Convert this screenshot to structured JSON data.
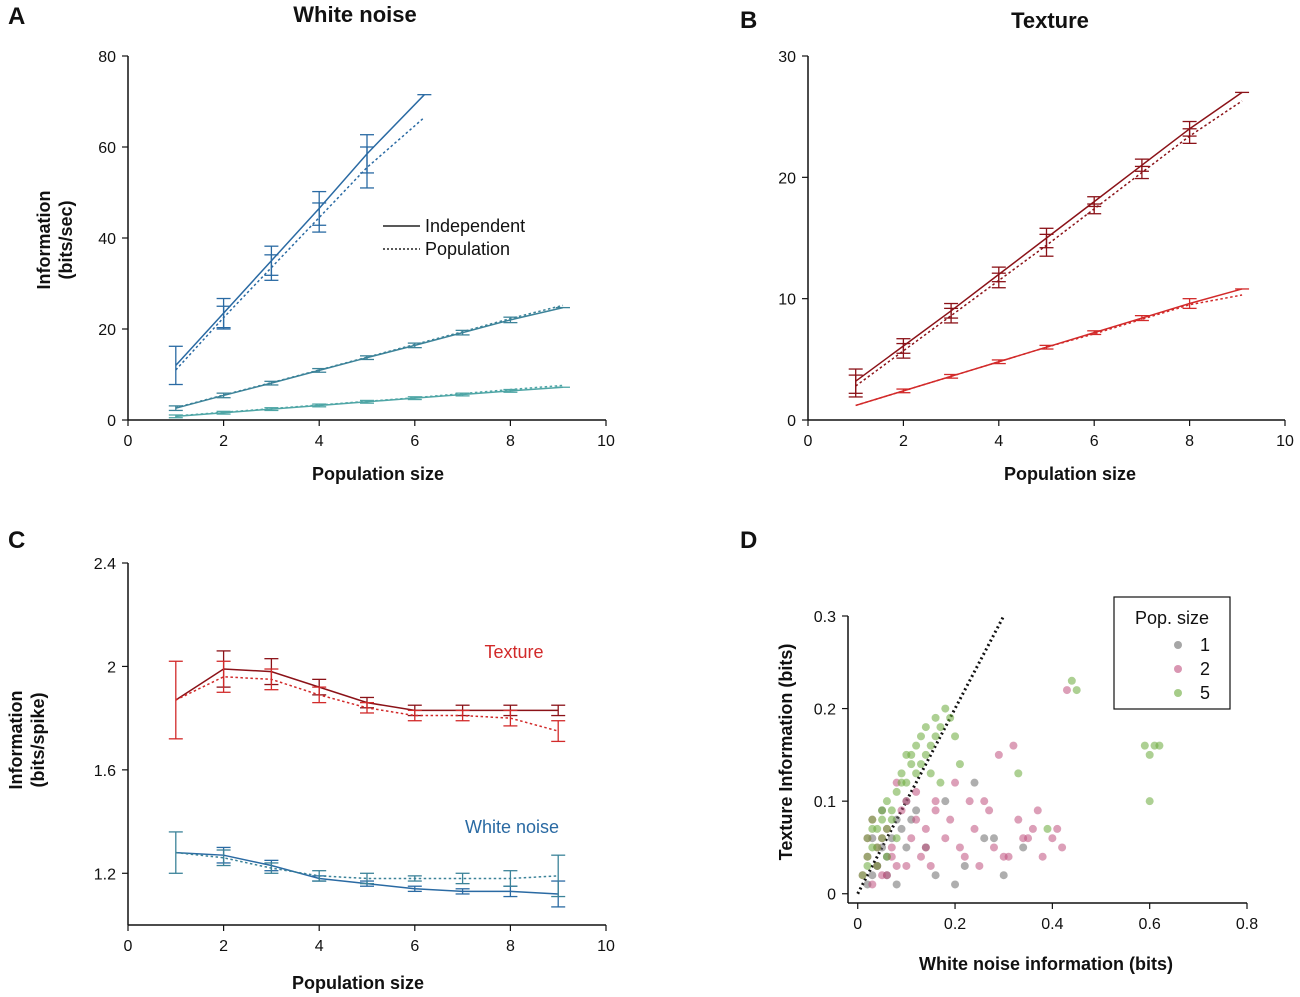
{
  "colors": {
    "blue_dark": "#2a6aa3",
    "blue_mid": "#3c8399",
    "teal": "#4fa6a6",
    "red_dark": "#8b1218",
    "red": "#d22a2a",
    "gray": "#6b6b6b",
    "magenta": "#c0507e",
    "green": "#6aaa3a"
  },
  "chart_data": [
    {
      "panel": "A",
      "type": "line",
      "title": "White noise",
      "xlabel": "Population size",
      "ylabel": [
        "Information",
        "(bits/sec)"
      ],
      "xlim": [
        0,
        10
      ],
      "ylim": [
        0,
        80
      ],
      "xticks": [
        0,
        2,
        4,
        6,
        8,
        10
      ],
      "yticks": [
        0,
        20,
        40,
        60,
        80
      ],
      "legend": {
        "position": "center",
        "entries": [
          {
            "label": "Independent",
            "style": "solid"
          },
          {
            "label": "Population",
            "style": "dotted"
          }
        ]
      },
      "series": [
        {
          "name": "Group 1 Independent",
          "style": "solid",
          "color": "blue_dark",
          "x": [
            1,
            2,
            3,
            4,
            5,
            6.2
          ],
          "y": [
            12,
            23.5,
            35,
            46.5,
            58.5,
            71.5
          ],
          "err": [
            4.2,
            3.2,
            3.2,
            3.7,
            4.2,
            0
          ]
        },
        {
          "name": "Group 1 Population",
          "style": "dotted",
          "color": "blue_dark",
          "x": [
            1,
            2,
            3,
            4,
            5,
            6.2
          ],
          "y": [
            11,
            22.5,
            33.5,
            44.5,
            55.5,
            66.5
          ],
          "err": [
            0,
            2.5,
            2.8,
            3.2,
            4.5,
            0
          ]
        },
        {
          "name": "Group 2 Independent",
          "style": "solid",
          "color": "blue_mid",
          "x": [
            1,
            2,
            3,
            4,
            5,
            6,
            7,
            8,
            9.1
          ],
          "y": [
            2.6,
            5.4,
            8.1,
            10.9,
            13.7,
            16.4,
            19.2,
            22,
            24.7
          ],
          "err": [
            0.5,
            0.5,
            0.4,
            0.4,
            0.4,
            0.5,
            0.5,
            0.6,
            0
          ]
        },
        {
          "name": "Group 2 Population",
          "style": "dotted",
          "color": "blue_mid",
          "x": [
            1,
            2,
            3,
            4,
            5,
            6,
            7,
            8,
            9.1
          ],
          "y": [
            2.7,
            5.5,
            8.2,
            11,
            13.8,
            16.6,
            19.4,
            22.3,
            25.2
          ],
          "err": [
            0,
            0,
            0,
            0,
            0,
            0,
            0,
            0,
            0
          ]
        },
        {
          "name": "Group 3 Independent",
          "style": "solid",
          "color": "teal",
          "x": [
            1,
            2,
            3,
            4,
            5,
            6,
            7,
            8,
            9.1
          ],
          "y": [
            0.8,
            1.6,
            2.4,
            3.2,
            4,
            4.8,
            5.6,
            6.4,
            7.2
          ],
          "err": [
            0.3,
            0.3,
            0.3,
            0.3,
            0.3,
            0.3,
            0.3,
            0.3,
            0
          ]
        },
        {
          "name": "Group 3 Population",
          "style": "dotted",
          "color": "teal",
          "x": [
            1,
            2,
            3,
            4,
            5,
            6,
            7,
            8,
            9.1
          ],
          "y": [
            0.9,
            1.7,
            2.5,
            3.3,
            4.1,
            4.9,
            5.8,
            6.7,
            7.6
          ],
          "err": [
            0,
            0,
            0,
            0,
            0,
            0,
            0,
            0,
            0
          ]
        }
      ]
    },
    {
      "panel": "B",
      "type": "line",
      "title": "Texture",
      "xlabel": "Population size",
      "ylabel": [],
      "xlim": [
        0,
        10
      ],
      "ylim": [
        0,
        30
      ],
      "xticks": [
        0,
        2,
        4,
        6,
        8,
        10
      ],
      "yticks": [
        0,
        10,
        20,
        30
      ],
      "series": [
        {
          "name": "Group 1 Independent",
          "style": "solid",
          "color": "red_dark",
          "x": [
            1,
            2,
            3,
            4,
            5,
            6,
            7,
            8,
            9.1
          ],
          "y": [
            3.2,
            6.1,
            9,
            12,
            15,
            18,
            21,
            24,
            27
          ],
          "err": [
            1,
            0.6,
            0.6,
            0.6,
            0.8,
            0.4,
            0.5,
            0.6,
            0
          ]
        },
        {
          "name": "Group 1 Population",
          "style": "dotted",
          "color": "red_dark",
          "x": [
            1,
            2,
            3,
            4,
            5,
            6,
            7,
            8,
            9.1
          ],
          "y": [
            2.8,
            5.7,
            8.6,
            11.5,
            14.4,
            17.4,
            20.4,
            23.4,
            26.3
          ],
          "err": [
            0.9,
            0.6,
            0.6,
            0.6,
            0.9,
            0.4,
            0.5,
            0.6,
            0
          ]
        },
        {
          "name": "Group 2 Independent",
          "style": "solid",
          "color": "red",
          "x": [
            1,
            2,
            3,
            4,
            5,
            6,
            7,
            8,
            9.1
          ],
          "y": [
            1.2,
            2.4,
            3.6,
            4.8,
            6,
            7.2,
            8.4,
            9.6,
            10.8
          ],
          "err": [
            0,
            0.15,
            0.15,
            0.15,
            0.15,
            0.15,
            0.2,
            0.4,
            0
          ]
        },
        {
          "name": "Group 2 Population",
          "style": "dotted",
          "color": "red",
          "x": [
            1,
            2,
            3,
            4,
            5,
            6,
            7,
            8,
            9.1
          ],
          "y": [
            1.2,
            2.4,
            3.6,
            4.8,
            6,
            7.1,
            8.3,
            9.5,
            10.3
          ],
          "err": [
            0,
            0,
            0,
            0,
            0,
            0,
            0,
            0,
            0
          ]
        }
      ]
    },
    {
      "panel": "C",
      "type": "line",
      "title": "",
      "xlabel": "Population size",
      "ylabel": [
        "Information",
        "(bits/spike)"
      ],
      "xlim": [
        0,
        10
      ],
      "ylim": [
        1.0,
        2.4
      ],
      "xticks": [
        0,
        2,
        4,
        6,
        8,
        10
      ],
      "yticks": [
        1.2,
        1.6,
        2,
        2.4
      ],
      "annotations": [
        {
          "text": "Texture",
          "x": 8,
          "y": 2.06,
          "color": "red"
        },
        {
          "text": "White noise",
          "x": 8,
          "y": 1.38,
          "color": "blue_dark"
        }
      ],
      "series": [
        {
          "name": "Texture Independent",
          "style": "solid",
          "color": "red_dark",
          "x": [
            1,
            2,
            3,
            4,
            5,
            6,
            7,
            8,
            9
          ],
          "y": [
            1.87,
            1.99,
            1.98,
            1.92,
            1.86,
            1.83,
            1.83,
            1.83,
            1.83
          ],
          "err": [
            0,
            0.07,
            0.05,
            0.03,
            0.02,
            0.02,
            0.02,
            0.02,
            0.02
          ]
        },
        {
          "name": "Texture Population",
          "style": "dotted",
          "color": "red",
          "x": [
            1,
            2,
            3,
            4,
            5,
            6,
            7,
            8,
            9
          ],
          "y": [
            1.87,
            1.96,
            1.95,
            1.89,
            1.84,
            1.81,
            1.81,
            1.8,
            1.75
          ],
          "err": [
            0.15,
            0.06,
            0.04,
            0.03,
            0.02,
            0.02,
            0.02,
            0.03,
            0.04
          ]
        },
        {
          "name": "White noise Independent",
          "style": "solid",
          "color": "blue_dark",
          "x": [
            1,
            2,
            3,
            4,
            5,
            6,
            7,
            8,
            9
          ],
          "y": [
            1.28,
            1.27,
            1.23,
            1.18,
            1.16,
            1.14,
            1.13,
            1.13,
            1.12
          ],
          "err": [
            0,
            0.03,
            0.02,
            0.01,
            0.01,
            0.01,
            0.01,
            0.02,
            0.05
          ]
        },
        {
          "name": "White noise Population",
          "style": "dotted",
          "color": "blue_mid",
          "x": [
            1,
            2,
            3,
            4,
            5,
            6,
            7,
            8,
            9
          ],
          "y": [
            1.28,
            1.26,
            1.22,
            1.19,
            1.18,
            1.18,
            1.18,
            1.18,
            1.19
          ],
          "err": [
            0.08,
            0.03,
            0.02,
            0.02,
            0.02,
            0.01,
            0.02,
            0.03,
            0.08
          ]
        }
      ]
    },
    {
      "panel": "D",
      "type": "scatter",
      "title": "",
      "xlabel": "White noise information (bits)",
      "ylabel": [
        "Texture Information (bits)"
      ],
      "xlim": [
        -0.02,
        0.8
      ],
      "ylim": [
        -0.01,
        0.3
      ],
      "xticks": [
        0,
        0.2,
        0.4,
        0.6,
        0.8
      ],
      "yticks": [
        0,
        0.1,
        0.2,
        0.3
      ],
      "legend": {
        "title": "Pop. size",
        "position": "top-right",
        "entries": [
          {
            "label": "1",
            "color": "gray"
          },
          {
            "label": "2",
            "color": "magenta"
          },
          {
            "label": "5",
            "color": "green"
          }
        ]
      },
      "reference_line": {
        "x": [
          0,
          0.3
        ],
        "y": [
          0,
          0.3
        ],
        "style": "dotted"
      },
      "series": [
        {
          "name": "1",
          "color": "gray",
          "x": [
            0.02,
            0.03,
            0.04,
            0.05,
            0.06,
            0.07,
            0.08,
            0.09,
            0.1,
            0.11,
            0.12,
            0.14,
            0.16,
            0.18,
            0.2,
            0.22,
            0.24,
            0.26,
            0.28,
            0.3,
            0.34,
            0.03,
            0.05,
            0.08,
            0.1,
            0.06
          ],
          "y": [
            0.01,
            0.02,
            0.03,
            0.05,
            0.04,
            0.06,
            0.08,
            0.07,
            0.1,
            0.08,
            0.09,
            0.05,
            0.02,
            0.1,
            0.01,
            0.03,
            0.12,
            0.06,
            0.06,
            0.02,
            0.05,
            0.06,
            0.09,
            0.01,
            0.05,
            0.02
          ]
        },
        {
          "name": "2",
          "color": "magenta",
          "x": [
            0.01,
            0.02,
            0.03,
            0.04,
            0.05,
            0.06,
            0.07,
            0.08,
            0.09,
            0.1,
            0.11,
            0.12,
            0.13,
            0.14,
            0.15,
            0.16,
            0.18,
            0.2,
            0.22,
            0.24,
            0.26,
            0.28,
            0.3,
            0.32,
            0.34,
            0.36,
            0.38,
            0.4,
            0.41,
            0.42,
            0.43,
            0.02,
            0.03,
            0.04,
            0.05,
            0.06,
            0.07,
            0.08,
            0.1,
            0.12,
            0.14,
            0.16,
            0.19,
            0.21,
            0.23,
            0.25,
            0.27,
            0.29,
            0.31,
            0.33,
            0.35,
            0.37
          ],
          "y": [
            0.02,
            0.04,
            0.01,
            0.03,
            0.06,
            0.02,
            0.05,
            0.03,
            0.09,
            0.1,
            0.06,
            0.11,
            0.04,
            0.07,
            0.03,
            0.09,
            0.06,
            0.12,
            0.04,
            0.07,
            0.1,
            0.05,
            0.04,
            0.16,
            0.06,
            0.07,
            0.04,
            0.06,
            0.07,
            0.05,
            0.22,
            0.06,
            0.08,
            0.05,
            0.02,
            0.07,
            0.04,
            0.12,
            0.03,
            0.08,
            0.05,
            0.1,
            0.08,
            0.05,
            0.1,
            0.03,
            0.09,
            0.15,
            0.04,
            0.08,
            0.06,
            0.09
          ]
        },
        {
          "name": "5",
          "color": "green",
          "x": [
            0.01,
            0.02,
            0.02,
            0.03,
            0.03,
            0.04,
            0.04,
            0.05,
            0.05,
            0.06,
            0.06,
            0.07,
            0.08,
            0.08,
            0.09,
            0.1,
            0.1,
            0.11,
            0.12,
            0.12,
            0.13,
            0.14,
            0.14,
            0.15,
            0.16,
            0.16,
            0.17,
            0.18,
            0.19,
            0.2,
            0.02,
            0.03,
            0.04,
            0.05,
            0.06,
            0.07,
            0.09,
            0.11,
            0.13,
            0.15,
            0.17,
            0.21,
            0.33,
            0.39,
            0.44,
            0.45,
            0.59,
            0.6,
            0.61,
            0.62,
            0.6
          ],
          "y": [
            0.02,
            0.04,
            0.06,
            0.05,
            0.08,
            0.07,
            0.03,
            0.06,
            0.09,
            0.07,
            0.1,
            0.08,
            0.11,
            0.06,
            0.13,
            0.12,
            0.15,
            0.14,
            0.16,
            0.13,
            0.17,
            0.15,
            0.18,
            0.16,
            0.17,
            0.19,
            0.18,
            0.2,
            0.19,
            0.17,
            0.03,
            0.07,
            0.05,
            0.08,
            0.04,
            0.09,
            0.12,
            0.15,
            0.14,
            0.13,
            0.12,
            0.14,
            0.13,
            0.07,
            0.23,
            0.22,
            0.16,
            0.15,
            0.16,
            0.16,
            0.1
          ]
        }
      ]
    }
  ]
}
